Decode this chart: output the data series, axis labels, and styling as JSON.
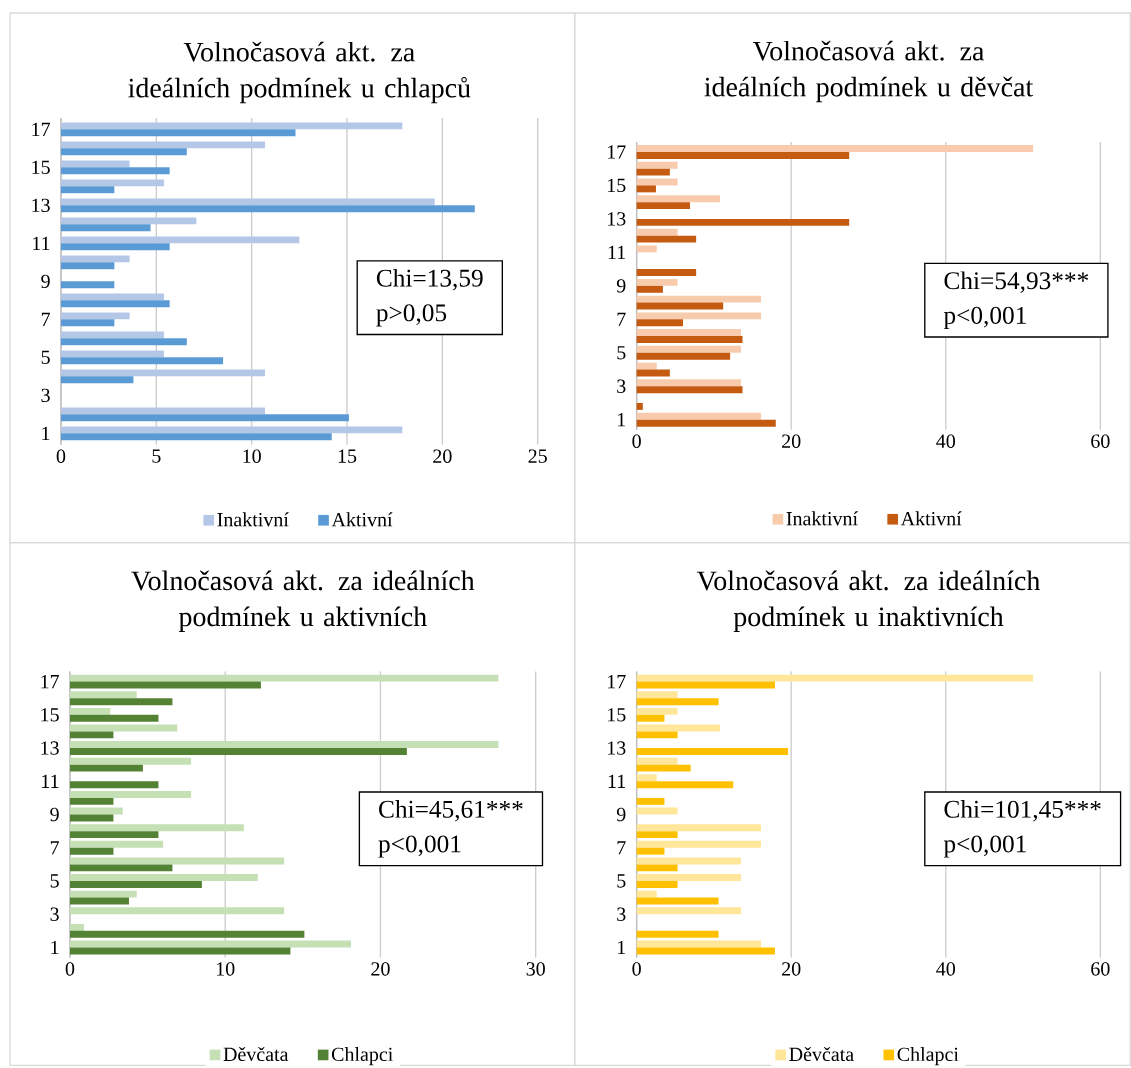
{
  "chart_data": [
    {
      "type": "bar",
      "orientation": "horizontal",
      "title": "Volnočasová akt. za ideálních podmínek u chlapců",
      "categories": [
        "17",
        null,
        "15",
        null,
        "13",
        null,
        "11",
        null,
        "9",
        null,
        "7",
        null,
        "5",
        null,
        "3",
        null,
        "1"
      ],
      "series": [
        {
          "name": "Inaktivní",
          "color": "#b4c7e7",
          "values": [
            17.9,
            10.7,
            3.6,
            5.4,
            19.6,
            7.1,
            12.5,
            3.6,
            0,
            5.4,
            3.6,
            5.4,
            5.4,
            10.7,
            0,
            10.7,
            17.9
          ]
        },
        {
          "name": "Aktivní",
          "color": "#5b9bd5",
          "values": [
            12.3,
            6.6,
            5.7,
            2.8,
            21.7,
            4.7,
            5.7,
            2.8,
            2.8,
            5.7,
            2.8,
            6.6,
            8.5,
            3.8,
            0,
            15.1,
            14.2
          ]
        }
      ],
      "xlim": [
        0,
        25
      ],
      "xticks": [
        0,
        5,
        10,
        15,
        20,
        25
      ],
      "grid": "x",
      "legend": "bottom",
      "annotations": [
        "Chi=13,59",
        "p>0,05"
      ]
    },
    {
      "type": "bar",
      "orientation": "horizontal",
      "title": "Volnočasová akt. za ideálních podmínek u děvčat",
      "categories": [
        "17",
        null,
        "15",
        null,
        "13",
        null,
        "11",
        null,
        "9",
        null,
        "7",
        null,
        "5",
        null,
        "3",
        null,
        "1"
      ],
      "series": [
        {
          "name": "Inaktivní",
          "color": "#f8cbad",
          "values": [
            51.3,
            5.3,
            5.3,
            10.8,
            0,
            5.3,
            2.6,
            0,
            5.3,
            16.1,
            16.1,
            13.5,
            13.5,
            2.6,
            13.5,
            0,
            16.1
          ]
        },
        {
          "name": "Aktivní",
          "color": "#c55a11",
          "values": [
            27.5,
            4.3,
            2.5,
            6.9,
            27.5,
            7.7,
            0,
            7.7,
            3.4,
            11.2,
            6.0,
            13.7,
            12.1,
            4.3,
            13.7,
            0.8,
            18.0
          ]
        }
      ],
      "xlim": [
        0,
        60
      ],
      "xticks": [
        0,
        20,
        40,
        60
      ],
      "grid": "x",
      "legend": "bottom",
      "annotations": [
        "Chi=54,93***",
        "p<0,001"
      ]
    },
    {
      "type": "bar",
      "orientation": "horizontal",
      "title": "Volnočasová akt. za ideálních podmínek u aktivních",
      "categories": [
        "17",
        null,
        "15",
        null,
        "13",
        null,
        "11",
        null,
        "9",
        null,
        "7",
        null,
        "5",
        null,
        "3",
        null,
        "1"
      ],
      "series": [
        {
          "name": "Děvčata",
          "color": "#c5e0b4",
          "values": [
            27.6,
            4.3,
            2.6,
            6.9,
            27.6,
            7.8,
            0,
            7.8,
            3.4,
            11.2,
            6.0,
            13.8,
            12.1,
            4.3,
            13.8,
            0.9,
            18.1
          ]
        },
        {
          "name": "Chlapci",
          "color": "#548235",
          "values": [
            12.3,
            6.6,
            5.7,
            2.8,
            21.7,
            4.7,
            5.7,
            2.8,
            2.8,
            5.7,
            2.8,
            6.6,
            8.5,
            3.8,
            0,
            15.1,
            14.2
          ]
        }
      ],
      "xlim": [
        0,
        30
      ],
      "xticks": [
        0,
        10,
        20,
        30
      ],
      "grid": "x",
      "legend": "bottom",
      "annotations": [
        "Chi=45,61***",
        "p<0,001"
      ]
    },
    {
      "type": "bar",
      "orientation": "horizontal",
      "title": "Volnočasová akt. za ideálních podmínek u inaktivních",
      "categories": [
        "17",
        null,
        "15",
        null,
        "13",
        null,
        "11",
        null,
        "9",
        null,
        "7",
        null,
        "5",
        null,
        "3",
        null,
        "1"
      ],
      "series": [
        {
          "name": "Děvčata",
          "color": "#ffe699",
          "values": [
            51.3,
            5.3,
            5.3,
            10.8,
            0,
            5.3,
            2.6,
            0,
            5.3,
            16.1,
            16.1,
            13.5,
            13.5,
            2.6,
            13.5,
            0,
            16.1
          ]
        },
        {
          "name": "Chlapci",
          "color": "#ffc000",
          "values": [
            17.9,
            10.6,
            3.6,
            5.3,
            19.6,
            7.0,
            12.5,
            3.6,
            0,
            5.3,
            3.6,
            5.3,
            5.3,
            10.6,
            0,
            10.6,
            17.9
          ]
        }
      ],
      "xlim": [
        0,
        60
      ],
      "xticks": [
        0,
        20,
        40,
        60
      ],
      "grid": "x",
      "legend": "bottom",
      "annotations": [
        "Chi=101,45***",
        "p<0,001"
      ]
    }
  ]
}
